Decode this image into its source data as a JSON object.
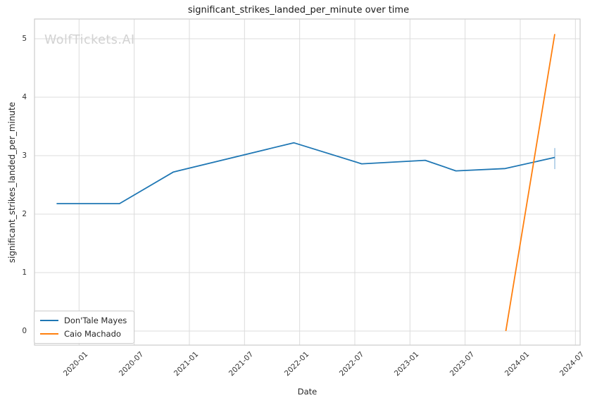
{
  "title": "significant_strikes_landed_per_minute over time",
  "watermark": "WolfTickets.AI",
  "colors": {
    "series_blue": "#1f77b4",
    "series_orange": "#ff7f0e",
    "errorbar": "#aacbe5",
    "grid": "#dcdcdc",
    "spine": "#cccccc",
    "text": "#262626"
  },
  "legend": {
    "items": [
      {
        "label": "Don'Tale Mayes",
        "color": "#1f77b4"
      },
      {
        "label": "Caio Machado",
        "color": "#ff7f0e"
      }
    ]
  },
  "chart_data": {
    "type": "line",
    "title": "significant_strikes_landed_per_minute over time",
    "xlabel": "Date",
    "ylabel": "significant_strikes_landed_per_minute",
    "x_tick_labels": [
      "2020-01",
      "2020-07",
      "2021-01",
      "2021-07",
      "2022-01",
      "2022-07",
      "2023-01",
      "2023-07",
      "2024-01",
      "2024-07"
    ],
    "y_ticks": [
      0,
      1,
      2,
      3,
      4,
      5
    ],
    "ylim": [
      -0.24,
      5.34
    ],
    "xlim_dates": [
      "2019-08-05",
      "2024-07-16"
    ],
    "grid": true,
    "legend_position": "lower left",
    "series": [
      {
        "name": "Don'Tale Mayes",
        "color": "#1f77b4",
        "points": [
          {
            "date": "2019-10-18",
            "value": 2.18
          },
          {
            "date": "2020-05-13",
            "value": 2.18
          },
          {
            "date": "2020-11-09",
            "value": 2.72
          },
          {
            "date": "2021-12-12",
            "value": 3.22
          },
          {
            "date": "2022-07-24",
            "value": 2.86
          },
          {
            "date": "2023-02-21",
            "value": 2.92
          },
          {
            "date": "2023-06-01",
            "value": 2.74
          },
          {
            "date": "2023-11-12",
            "value": 2.78
          },
          {
            "date": "2024-04-24",
            "value": 2.97
          }
        ],
        "errorbar_last": {
          "low": 2.77,
          "high": 3.13
        }
      },
      {
        "name": "Caio Machado",
        "color": "#ff7f0e",
        "points": [
          {
            "date": "2023-11-14",
            "value": 0.0
          },
          {
            "date": "2024-04-24",
            "value": 5.08
          }
        ]
      }
    ]
  }
}
